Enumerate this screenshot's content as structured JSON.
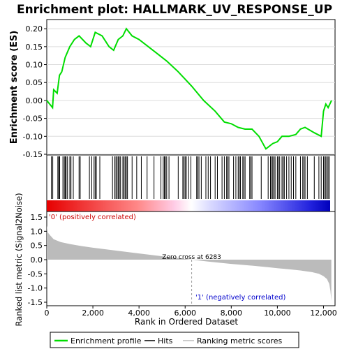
{
  "chart_data": {
    "type": "line",
    "title": "Enrichment plot: HALLMARK_UV_RESPONSE_UP",
    "top_panel": {
      "ylabel": "Enrichment score (ES)",
      "ylim": [
        -0.15,
        0.21
      ],
      "yticks": [
        "0.20",
        "0.15",
        "0.10",
        "0.05",
        "0.00",
        "-0.05",
        "-0.10",
        "-0.15"
      ],
      "ytick_values": [
        0.2,
        0.15,
        0.1,
        0.05,
        0.0,
        -0.05,
        -0.1,
        -0.15
      ],
      "grid": true,
      "series": [
        {
          "name": "Enrichment profile",
          "color": "#00dd00",
          "x": [
            0,
            250,
            300,
            450,
            550,
            650,
            800,
            1000,
            1200,
            1400,
            1700,
            1900,
            2100,
            2400,
            2700,
            2900,
            3100,
            3300,
            3450,
            3700,
            4000,
            4400,
            4800,
            5200,
            5700,
            6283,
            6800,
            7300,
            7700,
            8000,
            8300,
            8600,
            8900,
            9200,
            9500,
            9800,
            10000,
            10200,
            10500,
            10800,
            11000,
            11200,
            11600,
            11900,
            12000,
            12100,
            12200,
            12350
          ],
          "y": [
            0.0,
            -0.02,
            0.03,
            0.02,
            0.07,
            0.08,
            0.12,
            0.15,
            0.17,
            0.18,
            0.16,
            0.15,
            0.19,
            0.18,
            0.15,
            0.14,
            0.17,
            0.18,
            0.2,
            0.18,
            0.17,
            0.15,
            0.13,
            0.11,
            0.08,
            0.04,
            0.0,
            -0.03,
            -0.06,
            -0.065,
            -0.075,
            -0.08,
            -0.08,
            -0.1,
            -0.135,
            -0.12,
            -0.115,
            -0.1,
            -0.1,
            -0.095,
            -0.08,
            -0.075,
            -0.09,
            -0.1,
            -0.03,
            -0.01,
            -0.02,
            0.0
          ]
        }
      ]
    },
    "hits_panel": {
      "hit_positions": [
        200,
        260,
        480,
        520,
        560,
        700,
        760,
        800,
        840,
        900,
        1000,
        1050,
        1150,
        1400,
        1450,
        1850,
        1950,
        2050,
        2100,
        2150,
        2300,
        2850,
        2950,
        3000,
        3050,
        3100,
        3150,
        3200,
        3300,
        3350,
        3400,
        3450,
        3500,
        3700,
        3900,
        4100,
        4350,
        4650,
        4950,
        5050,
        5100,
        5150,
        5200,
        5300,
        5700,
        5900,
        5950,
        6000,
        6050,
        6150,
        6250,
        6500,
        6550,
        6600,
        6700,
        6900,
        7000,
        7100,
        7300,
        7400,
        7600,
        7700,
        7800,
        7850,
        7900,
        8100,
        8200,
        8300,
        8350,
        8400,
        8500,
        8550,
        8600,
        8800,
        8850,
        8900,
        9300,
        9600,
        9700,
        9750,
        9800,
        9850,
        9900,
        10000,
        10050,
        10100,
        10200,
        10250,
        10300,
        10400,
        10500,
        10600,
        10700,
        10800,
        11000,
        11100,
        11150,
        11200,
        11300,
        11600,
        11800,
        11900,
        12000,
        12050,
        12100,
        12150,
        12200,
        12250
      ]
    },
    "metric_panel": {
      "ylabel": "Ranked list metric (Signal2Noise)",
      "ylim": [
        -1.5,
        1.5
      ],
      "yticks": [
        "1.5",
        "1.0",
        "0.5",
        "0.0",
        "-0.5",
        "-1.0",
        "-1.5"
      ],
      "ytick_values": [
        1.5,
        1.0,
        0.5,
        0.0,
        -0.5,
        -1.0,
        -1.5
      ],
      "xlabel": "Rank in Ordered Dataset",
      "xticks": [
        "0",
        "2,000",
        "4,000",
        "6,000",
        "8,000",
        "10,000",
        "12,000"
      ],
      "xtick_values": [
        0,
        2000,
        4000,
        6000,
        8000,
        10000,
        12000
      ],
      "xlim": [
        0,
        12500
      ],
      "profile_x": [
        0,
        50,
        150,
        300,
        600,
        1000,
        1500,
        2000,
        3000,
        4000,
        5000,
        6283,
        7000,
        8000,
        9000,
        10000,
        10500,
        11000,
        11500,
        11800,
        12000,
        12150,
        12250,
        12300,
        12340
      ],
      "profile_y": [
        1.2,
        0.95,
        0.85,
        0.72,
        0.62,
        0.55,
        0.48,
        0.42,
        0.32,
        0.22,
        0.12,
        0.0,
        -0.07,
        -0.15,
        -0.22,
        -0.3,
        -0.34,
        -0.38,
        -0.44,
        -0.5,
        -0.58,
        -0.68,
        -0.85,
        -1.1,
        -1.45
      ],
      "zero_cross_label": "Zero cross at 6283",
      "zero_cross": 6283,
      "pos_label": "'0' (positively correlated)",
      "neg_label": "'1' (negatively correlated)"
    },
    "legend": {
      "placement": "bottom",
      "items": [
        {
          "label": "Enrichment profile",
          "color": "#00dd00"
        },
        {
          "label": "Hits",
          "color": "#000000"
        },
        {
          "label": "Ranking metric scores",
          "color": "#bbbbbb"
        }
      ]
    }
  }
}
